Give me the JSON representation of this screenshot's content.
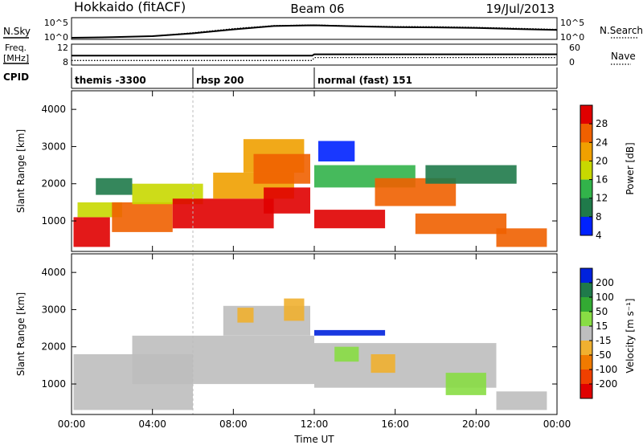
{
  "header": {
    "station": "Hokkaido (fitACF)",
    "beam": "Beam 06",
    "date": "19/Jul/2013"
  },
  "side_labels": {
    "nsky": "N.Sky",
    "freq_line1": "Freq.",
    "freq_line2": "[MHz]",
    "cpid": "CPID",
    "nsearch": "N.Search",
    "nave": "Nave"
  },
  "strip_ticks": {
    "nsky_hi": "10^5",
    "nsky_lo": "10^0",
    "nsearch_hi": "10^5",
    "nsearch_lo": "10^0",
    "freq_hi": "12",
    "freq_lo": "8",
    "nave_hi": "60",
    "nave_lo": "0"
  },
  "chart_data": [
    {
      "type": "line",
      "title": "N.Sky / N.Search",
      "x": [
        0,
        2,
        4,
        6,
        8,
        10,
        12,
        14,
        16,
        18,
        20,
        22,
        24
      ],
      "series": [
        {
          "name": "N.Sky",
          "values": [
            1,
            1.5,
            3,
            20,
            300,
            3000,
            5000,
            2500,
            1500,
            1200,
            800,
            400,
            200
          ]
        },
        {
          "name": "N.Search",
          "values": [
            1,
            1.5,
            3,
            30,
            500,
            4000,
            6000,
            3000,
            2000,
            1800,
            1200,
            600,
            300
          ]
        }
      ],
      "ylim": [
        1,
        100000
      ]
    },
    {
      "type": "line",
      "title": "Freq. / Nave",
      "x": [
        0,
        6,
        11.9,
        12,
        18,
        24
      ],
      "series": [
        {
          "name": "Freq.",
          "values": [
            10.2,
            10.2,
            10.2,
            10.6,
            10.6,
            10.6
          ]
        },
        {
          "name": "Nave",
          "values": [
            10,
            10,
            10,
            24,
            24,
            24
          ]
        }
      ]
    },
    {
      "type": "table",
      "title": "CPID",
      "segments": [
        {
          "start": 0,
          "end": 6,
          "label": "themis -3300"
        },
        {
          "start": 6,
          "end": 12,
          "label": "rbsp 200"
        },
        {
          "start": 12,
          "end": 24,
          "label": "normal (fast) 151"
        }
      ]
    },
    {
      "type": "heatmap",
      "title": "Power",
      "xlabel": "",
      "ylabel": "Slant Range [km]",
      "xlim": [
        0,
        24
      ],
      "ylim": [
        180,
        4500
      ],
      "yticks": [
        "1000",
        "2000",
        "3000",
        "4000"
      ],
      "colorbar": {
        "label": "Power [dB]",
        "ticks": [
          "4",
          "8",
          "12",
          "16",
          "20",
          "24",
          "28"
        ],
        "colors": [
          "#0022ff",
          "#1f7a4a",
          "#32b34a",
          "#c8d800",
          "#f0a000",
          "#f06000",
          "#e00000"
        ]
      },
      "patches": [
        {
          "x0": 0.1,
          "x1": 1.9,
          "y0": 300,
          "y1": 1100,
          "level": 6
        },
        {
          "x0": 0.3,
          "x1": 2.5,
          "y0": 1100,
          "y1": 1500,
          "level": 3
        },
        {
          "x0": 1.2,
          "x1": 3.0,
          "y0": 1700,
          "y1": 2150,
          "level": 1
        },
        {
          "x0": 2.0,
          "x1": 5.0,
          "y0": 700,
          "y1": 1500,
          "level": 5
        },
        {
          "x0": 3.0,
          "x1": 6.5,
          "y0": 1450,
          "y1": 2000,
          "level": 3
        },
        {
          "x0": 5.0,
          "x1": 10.0,
          "y0": 800,
          "y1": 1600,
          "level": 6
        },
        {
          "x0": 7.0,
          "x1": 11.0,
          "y0": 1600,
          "y1": 2300,
          "level": 4
        },
        {
          "x0": 8.5,
          "x1": 11.5,
          "y0": 2300,
          "y1": 3200,
          "level": 4
        },
        {
          "x0": 9.0,
          "x1": 11.8,
          "y0": 2000,
          "y1": 2800,
          "level": 5
        },
        {
          "x0": 9.5,
          "x1": 11.8,
          "y0": 1200,
          "y1": 1900,
          "level": 6
        },
        {
          "x0": 12.0,
          "x1": 17.0,
          "y0": 1900,
          "y1": 2500,
          "level": 2
        },
        {
          "x0": 12.0,
          "x1": 15.5,
          "y0": 800,
          "y1": 1300,
          "level": 6
        },
        {
          "x0": 15.0,
          "x1": 19.0,
          "y0": 1400,
          "y1": 2150,
          "level": 5
        },
        {
          "x0": 17.0,
          "x1": 21.5,
          "y0": 650,
          "y1": 1200,
          "level": 5
        },
        {
          "x0": 17.5,
          "x1": 22.0,
          "y0": 2000,
          "y1": 2500,
          "level": 1
        },
        {
          "x0": 12.2,
          "x1": 14.0,
          "y0": 2600,
          "y1": 3150,
          "level": 0
        },
        {
          "x0": 21.0,
          "x1": 23.5,
          "y0": 300,
          "y1": 800,
          "level": 5
        }
      ]
    },
    {
      "type": "heatmap",
      "title": "Velocity",
      "xlabel": "Time UT",
      "ylabel": "Slant Range [km]",
      "xlim": [
        0,
        24
      ],
      "ylim": [
        180,
        4500
      ],
      "xticks": [
        "00:00",
        "04:00",
        "08:00",
        "12:00",
        "16:00",
        "20:00",
        "00:00"
      ],
      "yticks": [
        "1000",
        "2000",
        "3000",
        "4000"
      ],
      "colorbar": {
        "label": "Velocity [m s⁻¹]",
        "ticks": [
          "200",
          "100",
          "50",
          "15",
          "-15",
          "-50",
          "-100",
          "-200"
        ],
        "colors": [
          "#0022dd",
          "#1f7a4a",
          "#33aa33",
          "#88dd44",
          "#bebebe",
          "#f0b030",
          "#f07a00",
          "#f04000",
          "#e00000"
        ]
      },
      "patches": [
        {
          "x0": 0.1,
          "x1": 6.0,
          "y0": 300,
          "y1": 1800,
          "level": 4
        },
        {
          "x0": 3.0,
          "x1": 12.0,
          "y0": 1000,
          "y1": 2300,
          "level": 4
        },
        {
          "x0": 7.5,
          "x1": 11.8,
          "y0": 2300,
          "y1": 3100,
          "level": 4
        },
        {
          "x0": 8.2,
          "x1": 9.0,
          "y0": 2650,
          "y1": 3050,
          "level": 5
        },
        {
          "x0": 10.5,
          "x1": 11.5,
          "y0": 2700,
          "y1": 3300,
          "level": 5
        },
        {
          "x0": 12.0,
          "x1": 21.0,
          "y0": 900,
          "y1": 2100,
          "level": 4
        },
        {
          "x0": 12.0,
          "x1": 15.5,
          "y0": 2300,
          "y1": 2450,
          "level": 0
        },
        {
          "x0": 14.8,
          "x1": 16.0,
          "y0": 1300,
          "y1": 1800,
          "level": 5
        },
        {
          "x0": 18.5,
          "x1": 20.5,
          "y0": 700,
          "y1": 1300,
          "level": 3
        },
        {
          "x0": 13.0,
          "x1": 14.2,
          "y0": 1600,
          "y1": 2000,
          "level": 3
        },
        {
          "x0": 21.0,
          "x1": 23.5,
          "y0": 300,
          "y1": 800,
          "level": 4
        }
      ]
    }
  ]
}
